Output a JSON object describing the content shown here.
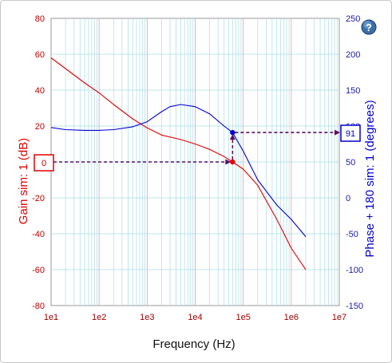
{
  "chart_data": {
    "type": "line",
    "xscale": "log",
    "xlabel": "Frequency (Hz)",
    "xlim": [
      10,
      10000000
    ],
    "x_tick_labels": [
      "1e1",
      "1e2",
      "1e3",
      "1e4",
      "1e5",
      "1e6",
      "1e7"
    ],
    "y_left": {
      "label": "Gain sim:  1 (dB)",
      "range": [
        -80,
        80
      ],
      "ticks": [
        80,
        60,
        40,
        20,
        0,
        -20,
        -40,
        -60,
        -80
      ],
      "color": "#e00000"
    },
    "y_right": {
      "label": "Phase + 180 sim:  1 (degrees)",
      "range": [
        -150,
        250
      ],
      "ticks": [
        250,
        200,
        150,
        100,
        50,
        0,
        -50,
        -100,
        -150
      ],
      "color": "#0000cc"
    },
    "grid": true,
    "series": [
      {
        "axis": "left",
        "color": "#e00000",
        "points": [
          [
            10,
            58
          ],
          [
            20,
            52
          ],
          [
            50,
            44
          ],
          [
            100,
            38.5
          ],
          [
            200,
            32
          ],
          [
            500,
            24
          ],
          [
            1000,
            19
          ],
          [
            2000,
            15
          ],
          [
            5000,
            12.5
          ],
          [
            10000,
            10
          ],
          [
            20000,
            7
          ],
          [
            40000,
            3
          ],
          [
            60000,
            0
          ],
          [
            100000,
            -4
          ],
          [
            200000,
            -13
          ],
          [
            500000,
            -32
          ],
          [
            1000000,
            -48
          ],
          [
            2000000,
            -60
          ]
        ]
      },
      {
        "axis": "right",
        "color": "#0000cc",
        "points": [
          [
            10,
            98
          ],
          [
            20,
            95
          ],
          [
            50,
            94
          ],
          [
            100,
            94
          ],
          [
            200,
            95
          ],
          [
            500,
            99
          ],
          [
            1000,
            106
          ],
          [
            2000,
            120
          ],
          [
            3000,
            127
          ],
          [
            5000,
            130
          ],
          [
            10000,
            127
          ],
          [
            20000,
            117
          ],
          [
            40000,
            100
          ],
          [
            60000,
            91
          ],
          [
            100000,
            65
          ],
          [
            200000,
            25
          ],
          [
            500000,
            -10
          ],
          [
            1000000,
            -30
          ],
          [
            2000000,
            -54
          ]
        ]
      }
    ],
    "markers": [
      {
        "axis": "left",
        "x": 60000,
        "y": 0,
        "color": "#e00000"
      },
      {
        "axis": "right",
        "x": 60000,
        "y": 91,
        "color": "#0000cc"
      }
    ],
    "readouts": {
      "gain": "0",
      "phase": "91"
    }
  },
  "ui": {
    "help_icon": "question-mark-icon",
    "help_symbol": "?"
  }
}
